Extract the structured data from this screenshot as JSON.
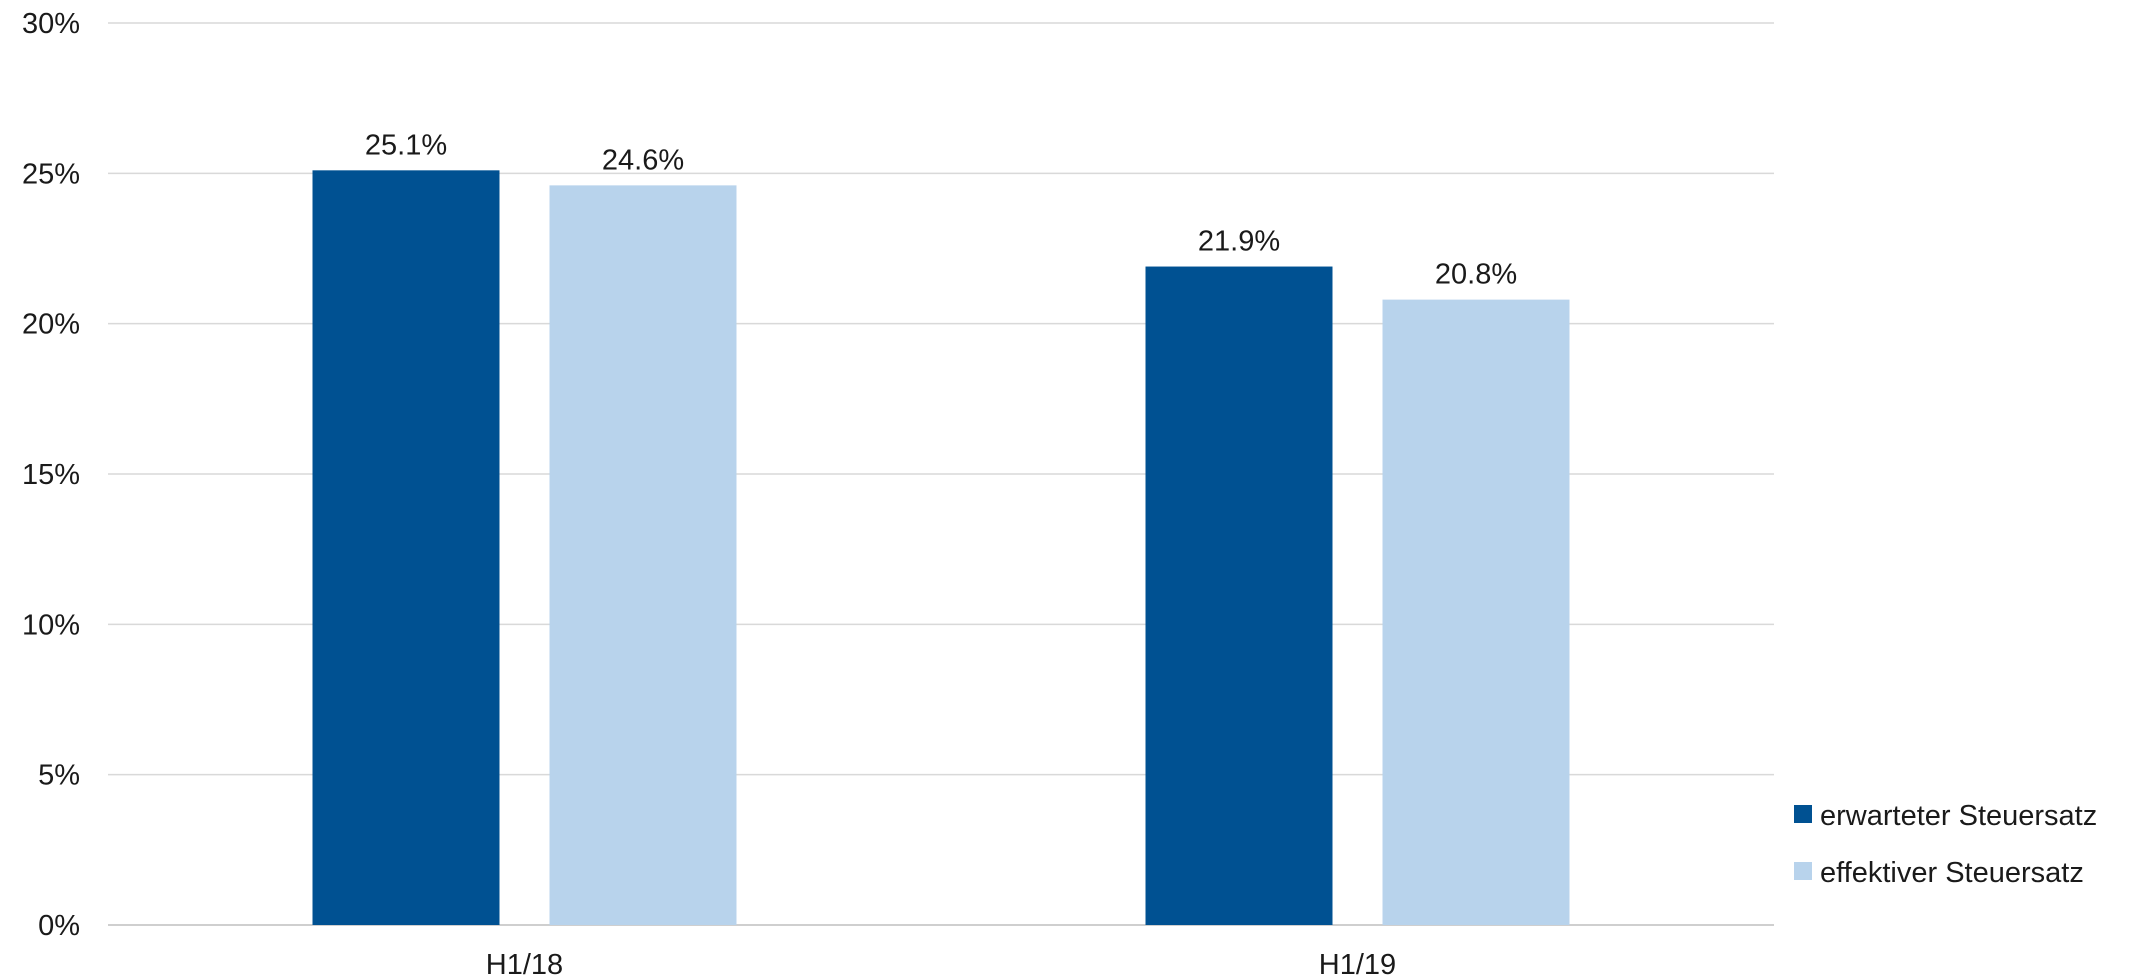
{
  "chart_data": {
    "type": "bar",
    "title": "",
    "xlabel": "",
    "ylabel": "",
    "categories": [
      "H1/18",
      "H1/19"
    ],
    "series": [
      {
        "name": "erwarteter Steuersatz",
        "color": "#005192",
        "values": [
          25.1,
          21.9
        ],
        "labels": [
          "25.1%",
          "21.9%"
        ]
      },
      {
        "name": "effektiver Steuersatz",
        "color": "#b8d3ec",
        "values": [
          24.6,
          20.8
        ],
        "labels": [
          "24.6%",
          "20.8%"
        ]
      }
    ],
    "ylim": [
      0,
      30
    ],
    "yticks": [
      0,
      5,
      10,
      15,
      20,
      25,
      30
    ],
    "ytick_labels": [
      "0%",
      "5%",
      "10%",
      "15%",
      "20%",
      "25%",
      "30%"
    ],
    "grid": true,
    "legend_position": "bottom-right",
    "gridline_color": "#d9d9d9"
  }
}
